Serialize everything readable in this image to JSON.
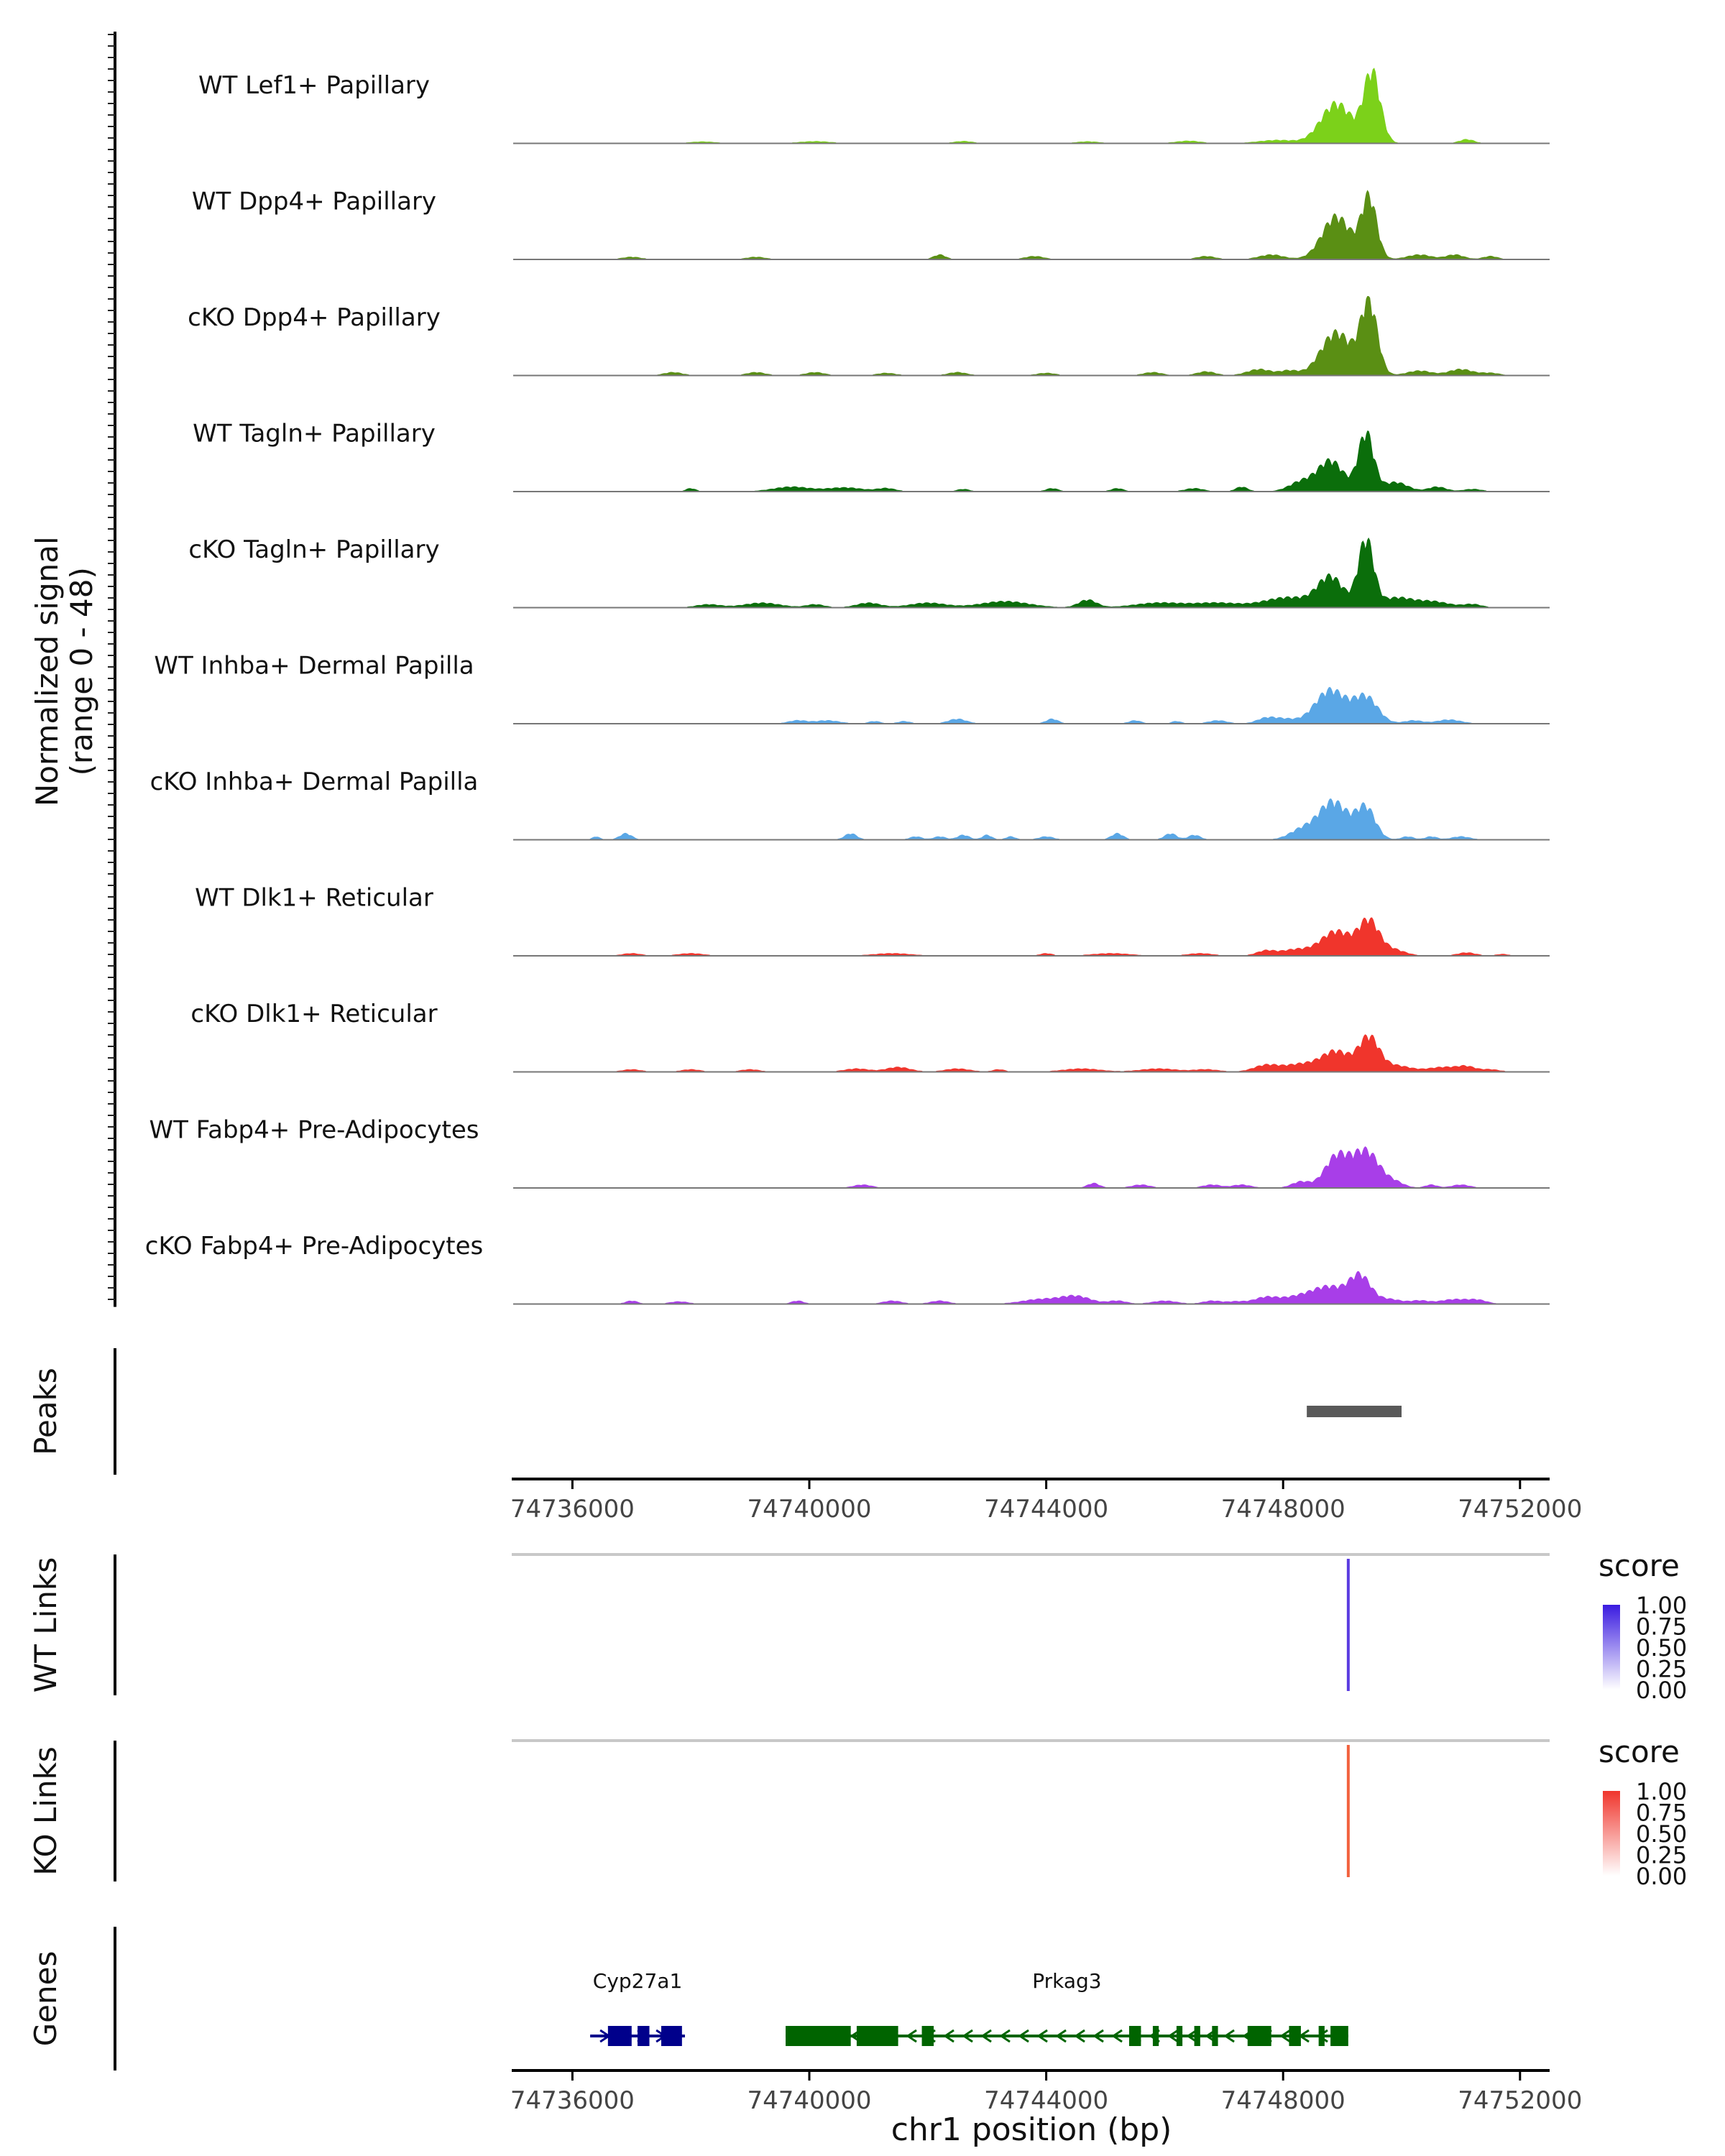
{
  "chart_data": {
    "type": "area",
    "region": {
      "chrom": "chr1",
      "start": 74735000,
      "end": 74752500
    },
    "coverage_axis_label": "Normalized signal",
    "coverage_range_label": "(range 0 - 48)",
    "coverage_range": [
      0,
      48
    ],
    "tracks": [
      {
        "name": "WT Lef1+ Papillary",
        "color": "#7CD11A",
        "peaks": [
          [
            74748900,
            26,
            260
          ],
          [
            74749500,
            46,
            140
          ],
          [
            74747900,
            2,
            300
          ],
          [
            74751100,
            2.5,
            120
          ],
          [
            74740100,
            1.2,
            250
          ],
          [
            74742600,
            1.3,
            150
          ],
          [
            74744700,
            1.1,
            180
          ],
          [
            74746400,
            1.5,
            200
          ],
          [
            74738200,
            1,
            200
          ]
        ]
      },
      {
        "name": "WT Dpp4+ Papillary",
        "color": "#5A8F14",
        "peaks": [
          [
            74748900,
            28,
            240
          ],
          [
            74749450,
            40,
            130
          ],
          [
            74747800,
            3,
            200
          ],
          [
            74750300,
            3,
            200
          ],
          [
            74750900,
            3,
            150
          ],
          [
            74742200,
            3,
            100
          ],
          [
            74743800,
            2,
            150
          ],
          [
            74737000,
            1.5,
            150
          ],
          [
            74739100,
            1.5,
            150
          ],
          [
            74746700,
            2,
            150
          ],
          [
            74751500,
            2,
            120
          ]
        ]
      },
      {
        "name": "cKO Dpp4+ Papillary",
        "color": "#5A8F14",
        "peaks": [
          [
            74748900,
            28,
            260
          ],
          [
            74749450,
            47,
            140
          ],
          [
            74747600,
            4,
            200
          ],
          [
            74748100,
            3,
            150
          ],
          [
            74750300,
            3,
            200
          ],
          [
            74751000,
            4,
            200
          ],
          [
            74737700,
            2,
            150
          ],
          [
            74739100,
            2,
            150
          ],
          [
            74740100,
            2,
            150
          ],
          [
            74741300,
            1.5,
            150
          ],
          [
            74742500,
            2,
            150
          ],
          [
            74744000,
            1.5,
            150
          ],
          [
            74745800,
            2,
            150
          ],
          [
            74746700,
            2.5,
            150
          ],
          [
            74751500,
            1.5,
            150
          ]
        ]
      },
      {
        "name": "WT Tagln+ Papillary",
        "color": "#0B6E0B",
        "peaks": [
          [
            74748800,
            20,
            220
          ],
          [
            74749400,
            38,
            130
          ],
          [
            74748300,
            6,
            200
          ],
          [
            74749900,
            6,
            200
          ],
          [
            74750600,
            3,
            150
          ],
          [
            74747300,
            3,
            100
          ],
          [
            74738000,
            2,
            80
          ],
          [
            74739700,
            3,
            300
          ],
          [
            74740600,
            2.5,
            300
          ],
          [
            74741300,
            2,
            150
          ],
          [
            74742600,
            1.5,
            100
          ],
          [
            74744100,
            2,
            100
          ],
          [
            74745200,
            2,
            100
          ],
          [
            74746500,
            2,
            150
          ],
          [
            74751200,
            1.5,
            150
          ]
        ]
      },
      {
        "name": "cKO Tagln+ Papillary",
        "color": "#0B6E0B",
        "peaks": [
          [
            74748800,
            20,
            220
          ],
          [
            74749400,
            44,
            130
          ],
          [
            74748200,
            5,
            300
          ],
          [
            74749900,
            6,
            250
          ],
          [
            74750500,
            4,
            300
          ],
          [
            74751200,
            2,
            150
          ],
          [
            74738300,
            2,
            200
          ],
          [
            74739200,
            3,
            300
          ],
          [
            74740100,
            2,
            150
          ],
          [
            74741000,
            3,
            200
          ],
          [
            74742000,
            3,
            300
          ],
          [
            74743300,
            4,
            400
          ],
          [
            74744700,
            5,
            150
          ],
          [
            74745900,
            3,
            400
          ],
          [
            74746900,
            3,
            400
          ],
          [
            74747800,
            3,
            300
          ]
        ]
      },
      {
        "name": "WT Inhba+ Dermal Papilla",
        "color": "#5AA7E6",
        "peaks": [
          [
            74748800,
            22,
            260
          ],
          [
            74749400,
            17,
            200
          ],
          [
            74748000,
            3,
            200
          ],
          [
            74750200,
            2,
            150
          ],
          [
            74750800,
            2.5,
            200
          ],
          [
            74739800,
            2,
            150
          ],
          [
            74740300,
            2,
            200
          ],
          [
            74741100,
            1.5,
            100
          ],
          [
            74741600,
            1.5,
            100
          ],
          [
            74742500,
            3,
            150
          ],
          [
            74744100,
            3,
            100
          ],
          [
            74745500,
            2,
            100
          ],
          [
            74746200,
            1.5,
            80
          ],
          [
            74746900,
            2,
            150
          ],
          [
            74747700,
            3,
            150
          ]
        ]
      },
      {
        "name": "cKO Inhba+ Dermal Papilla",
        "color": "#5AA7E6",
        "peaks": [
          [
            74748800,
            18,
            240
          ],
          [
            74749400,
            20,
            160
          ],
          [
            74748300,
            6,
            200
          ],
          [
            74748950,
            8,
            250
          ],
          [
            74736400,
            2,
            60
          ],
          [
            74736900,
            4,
            100
          ],
          [
            74740700,
            4,
            100
          ],
          [
            74741800,
            2,
            100
          ],
          [
            74742200,
            2,
            100
          ],
          [
            74742600,
            3,
            100
          ],
          [
            74743000,
            3,
            80
          ],
          [
            74743400,
            2,
            80
          ],
          [
            74744000,
            2,
            120
          ],
          [
            74745200,
            4,
            100
          ],
          [
            74746100,
            4,
            100
          ],
          [
            74746500,
            3,
            100
          ],
          [
            74750100,
            2,
            100
          ],
          [
            74750500,
            2,
            100
          ],
          [
            74751000,
            2,
            150
          ]
        ]
      },
      {
        "name": "WT Dlk1+ Reticular",
        "color": "#F0352C",
        "peaks": [
          [
            74748900,
            16,
            260
          ],
          [
            74749450,
            22,
            170
          ],
          [
            74748200,
            4,
            250
          ],
          [
            74747700,
            3,
            150
          ],
          [
            74749850,
            4,
            200
          ],
          [
            74751100,
            2,
            150
          ],
          [
            74737000,
            1.5,
            150
          ],
          [
            74738000,
            1.5,
            200
          ],
          [
            74741400,
            1.5,
            300
          ],
          [
            74744000,
            1.5,
            100
          ],
          [
            74745100,
            1.5,
            300
          ],
          [
            74746600,
            1.5,
            200
          ],
          [
            74751700,
            1,
            100
          ]
        ]
      },
      {
        "name": "cKO Dlk1+ Reticular",
        "color": "#F0352C",
        "peaks": [
          [
            74748900,
            13,
            240
          ],
          [
            74749450,
            22,
            170
          ],
          [
            74748300,
            5,
            300
          ],
          [
            74749900,
            4,
            250
          ],
          [
            74747700,
            4,
            200
          ],
          [
            74750700,
            3,
            250
          ],
          [
            74751100,
            3,
            150
          ],
          [
            74737000,
            1.5,
            150
          ],
          [
            74738000,
            1.5,
            150
          ],
          [
            74739000,
            1.5,
            150
          ],
          [
            74740800,
            2,
            200
          ],
          [
            74741500,
            3,
            200
          ],
          [
            74742500,
            2,
            200
          ],
          [
            74743200,
            1.5,
            100
          ],
          [
            74744600,
            2,
            300
          ],
          [
            74745900,
            2,
            300
          ],
          [
            74746700,
            1.5,
            200
          ],
          [
            74751500,
            1.5,
            150
          ]
        ]
      },
      {
        "name": "WT Fabp4+ Pre-Adipocytes",
        "color": "#A83EE8",
        "peaks": [
          [
            74748900,
            20,
            200
          ],
          [
            74749400,
            24,
            230
          ],
          [
            74748300,
            4,
            150
          ],
          [
            74749900,
            3,
            150
          ],
          [
            74750500,
            2,
            100
          ],
          [
            74740900,
            2,
            150
          ],
          [
            74744800,
            3,
            100
          ],
          [
            74745600,
            2,
            150
          ],
          [
            74746800,
            2,
            150
          ],
          [
            74747300,
            2,
            150
          ],
          [
            74751000,
            2,
            150
          ]
        ]
      },
      {
        "name": "cKO Fabp4+ Pre-Adipocytes",
        "color": "#A83EE8",
        "peaks": [
          [
            74748800,
            10,
            260
          ],
          [
            74749300,
            18,
            180
          ],
          [
            74748300,
            5,
            300
          ],
          [
            74747700,
            4,
            200
          ],
          [
            74749800,
            3,
            200
          ],
          [
            74750300,
            2,
            150
          ],
          [
            74750900,
            3,
            250
          ],
          [
            74751300,
            2,
            150
          ],
          [
            74737000,
            2,
            100
          ],
          [
            74737800,
            1.5,
            150
          ],
          [
            74739800,
            2,
            100
          ],
          [
            74741400,
            2,
            150
          ],
          [
            74742200,
            2,
            150
          ],
          [
            74743900,
            3,
            300
          ],
          [
            74744500,
            5,
            250
          ],
          [
            74745200,
            2,
            150
          ],
          [
            74746000,
            2,
            200
          ],
          [
            74746800,
            2,
            150
          ],
          [
            74747200,
            1.5,
            150
          ]
        ]
      }
    ],
    "peaks_track": {
      "label": "Peaks",
      "regions": [
        [
          74748400,
          74750000
        ]
      ],
      "color": "#595959"
    },
    "axis": {
      "ticks": [
        74736000,
        74740000,
        74744000,
        74748000,
        74752000
      ],
      "tick_labels": [
        "74736000",
        "74740000",
        "74744000",
        "74748000",
        "74752000"
      ]
    },
    "links": [
      {
        "label": "WT Links",
        "legend_title": "score",
        "color": "#5A3BE0",
        "gradient_top": "#3a1be0",
        "position": 74749100,
        "score": 1.0
      },
      {
        "label": "KO Links",
        "legend_title": "score",
        "color": "#F2613D",
        "gradient_top": "#f0352c",
        "position": 74749100,
        "score": 1.0
      }
    ],
    "legend_ticks": [
      "1.00",
      "0.75",
      "0.50",
      "0.25",
      "0.00"
    ],
    "genes_track": {
      "label": "Genes",
      "genes": [
        {
          "name": "Cyp27a1",
          "strand": "+",
          "start": 74736300,
          "end": 74737900,
          "color": "#00008B",
          "exons": [
            [
              74736600,
              74737000
            ],
            [
              74737100,
              74737300
            ],
            [
              74737500,
              74737850
            ]
          ]
        },
        {
          "name": "Prkag3",
          "strand": "-",
          "start": 74739600,
          "end": 74749100,
          "color": "#006400",
          "exons": [
            [
              74739600,
              74740700
            ],
            [
              74740800,
              74741500
            ],
            [
              74741900,
              74742100
            ],
            [
              74745400,
              74745600
            ],
            [
              74745800,
              74745900
            ],
            [
              74746200,
              74746300
            ],
            [
              74746500,
              74746600
            ],
            [
              74746800,
              74746900
            ],
            [
              74747400,
              74747800
            ],
            [
              74748100,
              74748300
            ],
            [
              74748600,
              74748700
            ],
            [
              74748800,
              74749100
            ]
          ]
        }
      ]
    },
    "xlabel": "chr1 position (bp)"
  }
}
